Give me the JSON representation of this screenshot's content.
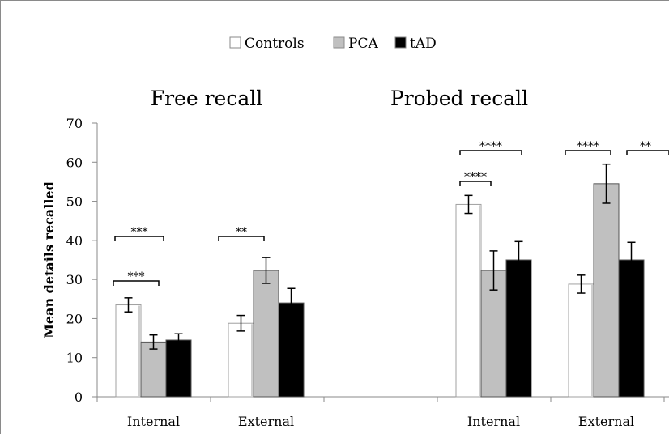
{
  "chart_data": {
    "type": "bar",
    "ylabel": "Mean details recalled",
    "ylim": [
      0,
      70
    ],
    "yticks": [
      0,
      10,
      20,
      30,
      40,
      50,
      60,
      70
    ],
    "legend_position": "top-center",
    "legend": [
      "Controls",
      "PCA",
      "tAD"
    ],
    "panels": [
      {
        "title": "Free recall",
        "categories": [
          "Internal",
          "External"
        ],
        "series": [
          {
            "name": "Controls",
            "color": "#ffffff",
            "values": [
              23.5,
              18.8
            ],
            "errors": [
              1.8,
              2.0
            ]
          },
          {
            "name": "PCA",
            "color": "#c0c0c0",
            "values": [
              14.0,
              32.3
            ],
            "errors": [
              1.8,
              3.3
            ]
          },
          {
            "name": "tAD",
            "color": "#000000",
            "values": [
              14.5,
              24.0
            ],
            "errors": [
              1.6,
              3.7
            ]
          }
        ],
        "significance": [
          {
            "category": 0,
            "from": 0,
            "to": 2,
            "label": "***"
          },
          {
            "category": 0,
            "from": 0,
            "to": 1,
            "label": "***"
          },
          {
            "category": 1,
            "from": 0,
            "to": 1,
            "label": "**"
          }
        ]
      },
      {
        "title": "Probed recall",
        "categories": [
          "Internal",
          "External"
        ],
        "series": [
          {
            "name": "Controls",
            "color": "#ffffff",
            "values": [
              49.2,
              28.8
            ],
            "errors": [
              2.3,
              2.3
            ]
          },
          {
            "name": "PCA",
            "color": "#c0c0c0",
            "values": [
              32.3,
              54.5
            ],
            "errors": [
              5.0,
              5.0
            ]
          },
          {
            "name": "tAD",
            "color": "#000000",
            "values": [
              35.0,
              35.0
            ],
            "errors": [
              4.7,
              4.5
            ]
          }
        ],
        "significance": [
          {
            "category": 0,
            "from": 0,
            "to": 2,
            "label": "****"
          },
          {
            "category": 0,
            "from": 0,
            "to": 1,
            "label": "****"
          },
          {
            "category": 1,
            "from": 0,
            "to": 1,
            "label": "****"
          },
          {
            "category": 1,
            "from": 2,
            "to": 3,
            "label": "**"
          }
        ]
      }
    ]
  }
}
